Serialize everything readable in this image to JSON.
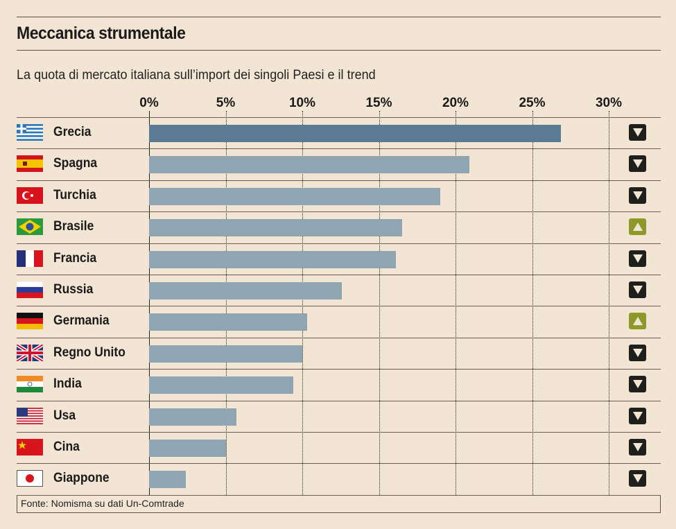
{
  "title": "Meccanica strumentale",
  "subtitle": "La quota di mercato italiana sull’import dei singoli Paesi e il trend",
  "source": "Fonte: Nomisma su dati Un-Comtrade",
  "colors": {
    "bar": "#8fa5b2",
    "highlight": "#5a7b93",
    "down": "#1f1f1c",
    "up": "#8d9a2a",
    "background": "#f3e5d4"
  },
  "chart_data": {
    "type": "bar",
    "orientation": "horizontal",
    "title": "Meccanica strumentale",
    "xlabel": "",
    "ylabel": "",
    "xlim": [
      0,
      30
    ],
    "ticks": [
      0,
      5,
      10,
      15,
      20,
      25,
      30
    ],
    "tick_labels": [
      "0%",
      "5%",
      "10%",
      "15%",
      "20%",
      "25%",
      "30%"
    ],
    "categories": [
      "Grecia",
      "Spagna",
      "Turchia",
      "Brasile",
      "Francia",
      "Russia",
      "Germania",
      "Regno Unito",
      "India",
      "Usa",
      "Cina",
      "Giappone"
    ],
    "flags": [
      "greece-flag",
      "spain-flag",
      "turkey-flag",
      "brazil-flag",
      "france-flag",
      "russia-flag",
      "germany-flag",
      "uk-flag",
      "india-flag",
      "usa-flag",
      "china-flag",
      "japan-flag"
    ],
    "values": [
      26.9,
      20.9,
      19.0,
      16.5,
      16.1,
      12.6,
      10.3,
      10.0,
      9.4,
      5.7,
      5.0,
      2.4
    ],
    "trend": [
      "down",
      "down",
      "down",
      "up",
      "down",
      "down",
      "up",
      "down",
      "down",
      "down",
      "down",
      "down"
    ],
    "grid": true
  }
}
